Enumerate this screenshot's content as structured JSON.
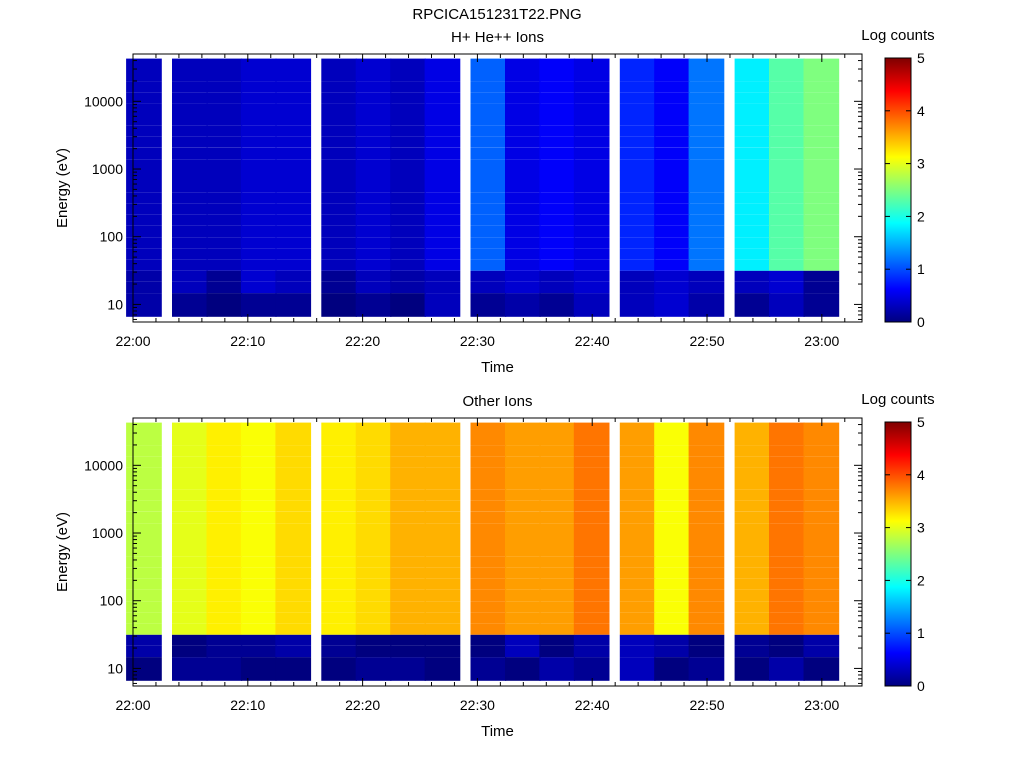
{
  "figure_title": "RPCICA151231T22.PNG",
  "colormap_stops": [
    "#00007f",
    "#0000ff",
    "#007fff",
    "#00ffff",
    "#7fff7f",
    "#ffff00",
    "#ff7f00",
    "#ff0000",
    "#7f0000"
  ],
  "chart_data": [
    {
      "type": "heatmap",
      "title": "H+ He++ Ions",
      "xlabel": "Time",
      "ylabel": "Energy (eV)",
      "x_ticks": [
        "22:00",
        "22:10",
        "22:20",
        "22:30",
        "22:40",
        "22:50",
        "23:00"
      ],
      "y_ticks": [
        "10",
        "100",
        "1000",
        "10000"
      ],
      "y_scale": "log",
      "ylim": [
        5.5,
        50000
      ],
      "colorbar_label": "Log counts",
      "colorbar_ticks": [
        "0",
        "1",
        "2",
        "3",
        "4",
        "5"
      ],
      "clim": [
        0,
        5
      ],
      "time_bins": [
        "22:01",
        "22:05",
        "22:08",
        "22:11",
        "22:14",
        "22:18",
        "22:21",
        "22:24",
        "22:27",
        "22:31",
        "22:34",
        "22:37",
        "22:40",
        "22:44",
        "22:47",
        "22:50",
        "22:54",
        "22:57",
        "23:00"
      ],
      "energy_bins_ev": [
        8,
        12,
        18,
        26,
        38,
        55,
        80,
        120,
        175,
        255,
        370,
        540,
        790,
        1150,
        1700,
        2500,
        3600,
        5300,
        7700,
        11300,
        16500,
        24000,
        35000
      ],
      "values": [
        [
          0.2,
          0.1,
          0.0,
          0.1,
          0.1,
          0.0,
          0.1,
          0.0,
          0.3,
          0.1,
          0.2,
          0.1,
          0.3,
          0.3,
          0.4,
          0.2,
          0.1,
          0.3,
          0.1
        ],
        [
          0.2,
          0.1,
          0.0,
          0.1,
          0.1,
          0.0,
          0.1,
          0.0,
          0.3,
          0.1,
          0.2,
          0.1,
          0.3,
          0.3,
          0.4,
          0.2,
          0.1,
          0.3,
          0.1
        ],
        [
          0.2,
          0.3,
          0.1,
          0.4,
          0.3,
          0.1,
          0.3,
          0.2,
          0.3,
          0.3,
          0.4,
          0.3,
          0.4,
          0.3,
          0.4,
          0.3,
          0.3,
          0.4,
          0.1
        ],
        [
          0.2,
          0.3,
          0.1,
          0.4,
          0.3,
          0.1,
          0.3,
          0.2,
          0.3,
          0.3,
          0.4,
          0.3,
          0.4,
          0.3,
          0.4,
          0.3,
          0.3,
          0.4,
          0.1
        ],
        [
          0.3,
          0.3,
          0.3,
          0.4,
          0.4,
          0.3,
          0.4,
          0.3,
          0.5,
          1.1,
          0.5,
          0.6,
          0.5,
          0.8,
          0.6,
          1.2,
          1.8,
          2.3,
          2.5
        ],
        [
          0.3,
          0.3,
          0.3,
          0.4,
          0.4,
          0.3,
          0.4,
          0.3,
          0.5,
          1.1,
          0.5,
          0.6,
          0.5,
          0.8,
          0.6,
          1.2,
          1.8,
          2.3,
          2.5
        ],
        [
          0.3,
          0.3,
          0.3,
          0.4,
          0.4,
          0.3,
          0.4,
          0.3,
          0.5,
          1.1,
          0.5,
          0.6,
          0.5,
          0.8,
          0.6,
          1.2,
          1.8,
          2.3,
          2.5
        ],
        [
          0.3,
          0.3,
          0.3,
          0.4,
          0.4,
          0.3,
          0.4,
          0.3,
          0.5,
          1.1,
          0.5,
          0.6,
          0.5,
          0.8,
          0.6,
          1.2,
          1.8,
          2.3,
          2.5
        ],
        [
          0.3,
          0.3,
          0.3,
          0.4,
          0.4,
          0.3,
          0.4,
          0.3,
          0.5,
          1.1,
          0.5,
          0.6,
          0.5,
          0.8,
          0.6,
          1.2,
          1.8,
          2.3,
          2.5
        ],
        [
          0.3,
          0.3,
          0.3,
          0.4,
          0.4,
          0.3,
          0.4,
          0.3,
          0.5,
          1.1,
          0.5,
          0.6,
          0.5,
          0.8,
          0.6,
          1.2,
          1.8,
          2.3,
          2.5
        ],
        [
          0.3,
          0.3,
          0.3,
          0.4,
          0.4,
          0.3,
          0.4,
          0.3,
          0.5,
          1.1,
          0.5,
          0.6,
          0.5,
          0.8,
          0.6,
          1.2,
          1.8,
          2.3,
          2.5
        ],
        [
          0.3,
          0.3,
          0.3,
          0.4,
          0.4,
          0.3,
          0.4,
          0.3,
          0.5,
          1.1,
          0.5,
          0.6,
          0.5,
          0.8,
          0.6,
          1.2,
          1.8,
          2.3,
          2.5
        ],
        [
          0.3,
          0.3,
          0.3,
          0.4,
          0.4,
          0.3,
          0.4,
          0.3,
          0.5,
          1.1,
          0.5,
          0.6,
          0.5,
          0.8,
          0.6,
          1.2,
          1.8,
          2.3,
          2.5
        ],
        [
          0.3,
          0.3,
          0.3,
          0.4,
          0.4,
          0.3,
          0.4,
          0.3,
          0.5,
          1.1,
          0.5,
          0.6,
          0.5,
          0.8,
          0.6,
          1.2,
          1.8,
          2.3,
          2.5
        ],
        [
          0.3,
          0.3,
          0.3,
          0.4,
          0.4,
          0.3,
          0.4,
          0.3,
          0.5,
          1.1,
          0.5,
          0.6,
          0.5,
          0.8,
          0.6,
          1.2,
          1.8,
          2.3,
          2.5
        ],
        [
          0.3,
          0.3,
          0.3,
          0.4,
          0.4,
          0.3,
          0.4,
          0.3,
          0.5,
          1.1,
          0.5,
          0.6,
          0.5,
          0.8,
          0.6,
          1.2,
          1.8,
          2.3,
          2.5
        ],
        [
          0.3,
          0.3,
          0.3,
          0.4,
          0.4,
          0.3,
          0.4,
          0.3,
          0.5,
          1.1,
          0.5,
          0.6,
          0.5,
          0.8,
          0.6,
          1.2,
          1.8,
          2.3,
          2.5
        ],
        [
          0.3,
          0.3,
          0.3,
          0.4,
          0.4,
          0.3,
          0.4,
          0.3,
          0.5,
          1.1,
          0.5,
          0.6,
          0.5,
          0.8,
          0.6,
          1.2,
          1.8,
          2.3,
          2.5
        ],
        [
          0.3,
          0.3,
          0.3,
          0.4,
          0.4,
          0.3,
          0.4,
          0.3,
          0.5,
          1.1,
          0.5,
          0.6,
          0.5,
          0.8,
          0.6,
          1.2,
          1.8,
          2.3,
          2.5
        ],
        [
          0.3,
          0.3,
          0.3,
          0.4,
          0.4,
          0.3,
          0.4,
          0.3,
          0.5,
          1.1,
          0.5,
          0.6,
          0.5,
          0.8,
          0.6,
          1.2,
          1.8,
          2.3,
          2.5
        ],
        [
          0.3,
          0.3,
          0.3,
          0.4,
          0.4,
          0.3,
          0.4,
          0.3,
          0.5,
          1.1,
          0.5,
          0.6,
          0.5,
          0.8,
          0.6,
          1.2,
          1.8,
          2.3,
          2.5
        ],
        [
          0.3,
          0.3,
          0.3,
          0.4,
          0.4,
          0.3,
          0.4,
          0.3,
          0.5,
          1.1,
          0.5,
          0.6,
          0.5,
          0.8,
          0.6,
          1.2,
          1.8,
          2.3,
          2.5
        ],
        [
          0.3,
          0.3,
          0.3,
          0.4,
          0.4,
          0.3,
          0.4,
          0.3,
          0.5,
          1.1,
          0.5,
          0.6,
          0.5,
          0.8,
          0.6,
          1.2,
          1.8,
          2.3,
          2.5
        ]
      ],
      "values_layout": "rows = energy bins (low to high), columns = time bins; approximate; blank cells are no counts"
    },
    {
      "type": "heatmap",
      "title": "Other Ions",
      "xlabel": "Time",
      "ylabel": "Energy (eV)",
      "x_ticks": [
        "22:00",
        "22:10",
        "22:20",
        "22:30",
        "22:40",
        "22:50",
        "23:00"
      ],
      "y_ticks": [
        "10",
        "100",
        "1000",
        "10000"
      ],
      "y_scale": "log",
      "ylim": [
        5.5,
        50000
      ],
      "colorbar_label": "Log counts",
      "colorbar_ticks": [
        "0",
        "1",
        "2",
        "3",
        "4",
        "5"
      ],
      "clim": [
        0,
        5
      ],
      "time_bins": [
        "22:01",
        "22:05",
        "22:08",
        "22:11",
        "22:14",
        "22:18",
        "22:21",
        "22:24",
        "22:27",
        "22:31",
        "22:34",
        "22:37",
        "22:40",
        "22:44",
        "22:47",
        "22:50",
        "22:54",
        "22:57",
        "23:00"
      ],
      "energy_bins_ev": [
        8,
        12,
        18,
        26,
        38,
        55,
        80,
        120,
        175,
        255,
        370,
        540,
        790,
        1150,
        1700,
        2500,
        3600,
        5300,
        7700,
        11300,
        16500,
        24000,
        35000
      ],
      "values": [
        [
          0.0,
          0.1,
          0.1,
          0.0,
          0.0,
          0.0,
          0.1,
          0.1,
          0.0,
          0.1,
          0.0,
          0.2,
          0.1,
          0.3,
          0.0,
          0.1,
          0.0,
          0.2,
          0.0
        ],
        [
          0.0,
          0.1,
          0.1,
          0.0,
          0.0,
          0.0,
          0.1,
          0.1,
          0.0,
          0.1,
          0.0,
          0.2,
          0.1,
          0.3,
          0.0,
          0.1,
          0.0,
          0.2,
          0.0
        ],
        [
          0.2,
          0.0,
          0.1,
          0.1,
          0.2,
          0.1,
          0.0,
          0.0,
          0.0,
          0.0,
          0.3,
          0.0,
          0.2,
          0.3,
          0.2,
          0.0,
          0.1,
          0.0,
          0.2
        ],
        [
          0.2,
          0.0,
          0.1,
          0.1,
          0.2,
          0.1,
          0.0,
          0.0,
          0.0,
          0.0,
          0.3,
          0.0,
          0.2,
          0.3,
          0.2,
          0.0,
          0.1,
          0.0,
          0.2
        ],
        [
          2.8,
          3.0,
          3.2,
          3.1,
          3.3,
          3.2,
          3.3,
          3.5,
          3.5,
          3.7,
          3.6,
          3.6,
          3.8,
          3.6,
          3.1,
          3.7,
          3.5,
          3.8,
          3.7
        ],
        [
          2.8,
          3.0,
          3.2,
          3.1,
          3.3,
          3.2,
          3.3,
          3.5,
          3.5,
          3.7,
          3.6,
          3.6,
          3.8,
          3.6,
          3.1,
          3.7,
          3.5,
          3.8,
          3.7
        ],
        [
          2.8,
          3.0,
          3.2,
          3.1,
          3.3,
          3.2,
          3.3,
          3.5,
          3.5,
          3.7,
          3.6,
          3.6,
          3.8,
          3.6,
          3.1,
          3.7,
          3.5,
          3.8,
          3.7
        ],
        [
          2.8,
          3.0,
          3.2,
          3.1,
          3.3,
          3.2,
          3.3,
          3.5,
          3.5,
          3.7,
          3.6,
          3.6,
          3.8,
          3.6,
          3.1,
          3.7,
          3.5,
          3.8,
          3.7
        ],
        [
          2.8,
          3.0,
          3.2,
          3.1,
          3.3,
          3.2,
          3.3,
          3.5,
          3.5,
          3.7,
          3.6,
          3.6,
          3.8,
          3.6,
          3.1,
          3.7,
          3.5,
          3.8,
          3.7
        ],
        [
          2.8,
          3.0,
          3.2,
          3.1,
          3.3,
          3.2,
          3.3,
          3.5,
          3.5,
          3.7,
          3.6,
          3.6,
          3.8,
          3.6,
          3.1,
          3.7,
          3.5,
          3.8,
          3.7
        ],
        [
          2.8,
          3.0,
          3.2,
          3.1,
          3.3,
          3.2,
          3.3,
          3.5,
          3.5,
          3.7,
          3.6,
          3.6,
          3.8,
          3.6,
          3.1,
          3.7,
          3.5,
          3.8,
          3.7
        ],
        [
          2.8,
          3.0,
          3.2,
          3.1,
          3.3,
          3.2,
          3.3,
          3.5,
          3.5,
          3.7,
          3.6,
          3.6,
          3.8,
          3.6,
          3.1,
          3.7,
          3.5,
          3.8,
          3.7
        ],
        [
          2.8,
          3.0,
          3.2,
          3.1,
          3.3,
          3.2,
          3.3,
          3.5,
          3.5,
          3.7,
          3.6,
          3.6,
          3.8,
          3.6,
          3.1,
          3.7,
          3.5,
          3.8,
          3.7
        ],
        [
          2.8,
          3.0,
          3.2,
          3.1,
          3.3,
          3.2,
          3.3,
          3.5,
          3.5,
          3.7,
          3.6,
          3.6,
          3.8,
          3.6,
          3.1,
          3.7,
          3.5,
          3.8,
          3.7
        ],
        [
          2.8,
          3.0,
          3.2,
          3.1,
          3.3,
          3.2,
          3.3,
          3.5,
          3.5,
          3.7,
          3.6,
          3.6,
          3.8,
          3.6,
          3.1,
          3.7,
          3.5,
          3.8,
          3.7
        ],
        [
          2.8,
          3.0,
          3.2,
          3.1,
          3.3,
          3.2,
          3.3,
          3.5,
          3.5,
          3.7,
          3.6,
          3.6,
          3.8,
          3.6,
          3.1,
          3.7,
          3.5,
          3.8,
          3.7
        ],
        [
          2.8,
          3.0,
          3.2,
          3.1,
          3.3,
          3.2,
          3.3,
          3.5,
          3.5,
          3.7,
          3.6,
          3.6,
          3.8,
          3.6,
          3.1,
          3.7,
          3.5,
          3.8,
          3.7
        ],
        [
          2.8,
          3.0,
          3.2,
          3.1,
          3.3,
          3.2,
          3.3,
          3.5,
          3.5,
          3.7,
          3.6,
          3.6,
          3.8,
          3.6,
          3.1,
          3.7,
          3.5,
          3.8,
          3.7
        ],
        [
          2.8,
          3.0,
          3.2,
          3.1,
          3.3,
          3.2,
          3.3,
          3.5,
          3.5,
          3.7,
          3.6,
          3.6,
          3.8,
          3.6,
          3.1,
          3.7,
          3.5,
          3.8,
          3.7
        ],
        [
          2.8,
          3.0,
          3.2,
          3.1,
          3.3,
          3.2,
          3.3,
          3.5,
          3.5,
          3.7,
          3.6,
          3.6,
          3.8,
          3.6,
          3.1,
          3.7,
          3.5,
          3.8,
          3.7
        ],
        [
          2.8,
          3.0,
          3.2,
          3.1,
          3.3,
          3.2,
          3.3,
          3.5,
          3.5,
          3.7,
          3.6,
          3.6,
          3.8,
          3.6,
          3.1,
          3.7,
          3.5,
          3.8,
          3.7
        ],
        [
          2.8,
          3.0,
          3.2,
          3.1,
          3.3,
          3.2,
          3.3,
          3.5,
          3.5,
          3.7,
          3.6,
          3.6,
          3.8,
          3.6,
          3.1,
          3.7,
          3.5,
          3.8,
          3.7
        ],
        [
          2.8,
          3.0,
          3.2,
          3.1,
          3.3,
          3.2,
          3.3,
          3.5,
          3.5,
          3.7,
          3.6,
          3.6,
          3.8,
          3.6,
          3.1,
          3.7,
          3.5,
          3.8,
          3.7
        ]
      ],
      "values_layout": "rows = energy bins (low to high), columns = time bins; approximate; blank cells are no counts"
    }
  ]
}
